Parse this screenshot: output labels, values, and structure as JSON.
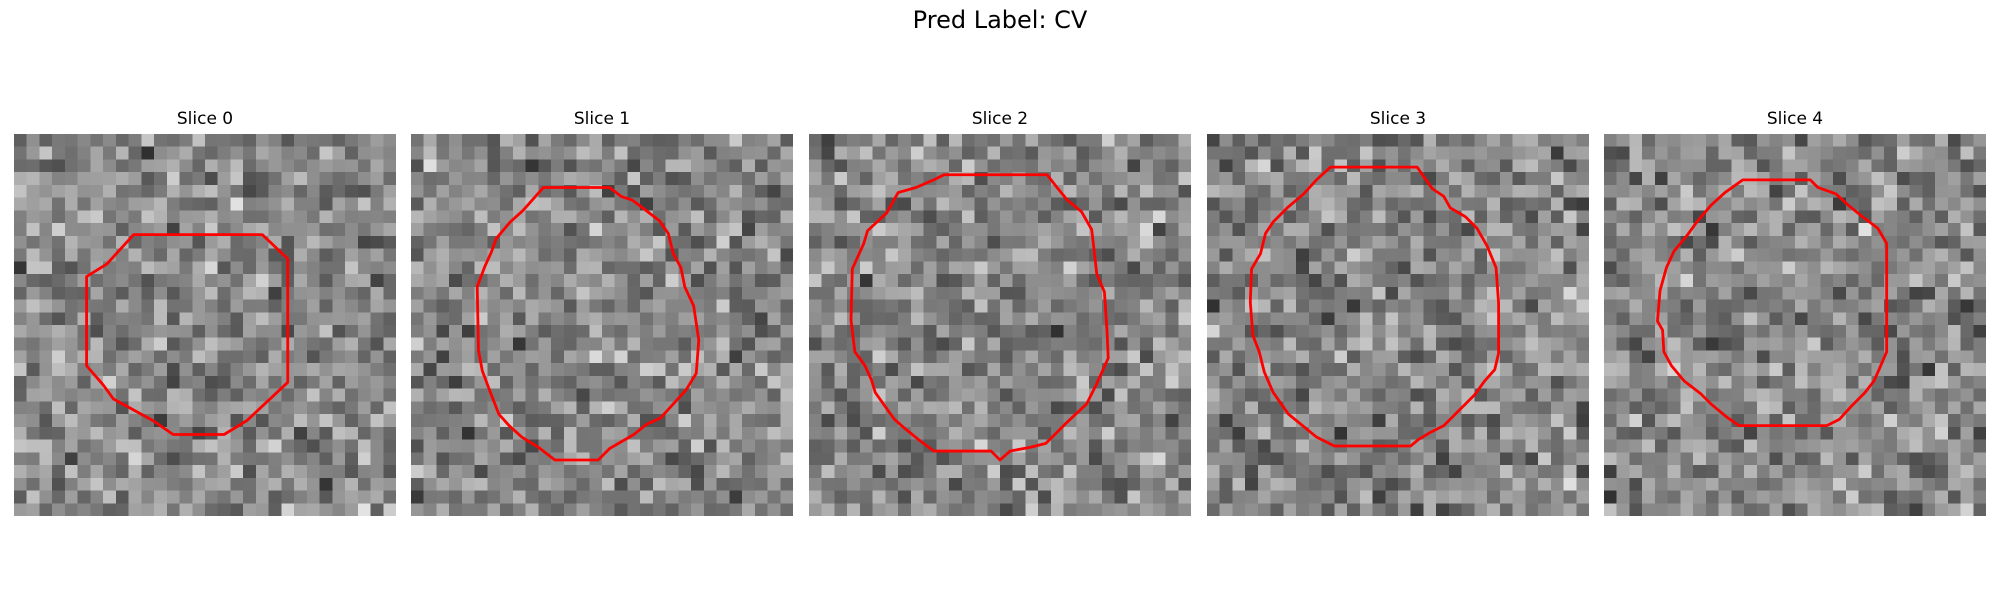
{
  "figure": {
    "title": "Pred Label: CV"
  },
  "panels": [
    {
      "title": "Slice 0",
      "seed": 11,
      "contour": [
        [
          9.4,
          7.9
        ],
        [
          19.5,
          7.9
        ],
        [
          21.5,
          9.8
        ],
        [
          21.5,
          19.5
        ],
        [
          18.3,
          22.5
        ],
        [
          16.5,
          23.6
        ],
        [
          12.5,
          23.6
        ],
        [
          10.9,
          22.5
        ],
        [
          7.8,
          20.8
        ],
        [
          7.0,
          19.7
        ],
        [
          5.7,
          18.2
        ],
        [
          5.7,
          11.2
        ],
        [
          7.3,
          10.2
        ]
      ],
      "contour_color": "#ff0000"
    },
    {
      "title": "Slice 1",
      "seed": 23,
      "contour": [
        [
          10.4,
          4.2
        ],
        [
          15.6,
          4.2
        ],
        [
          16.5,
          4.9
        ],
        [
          17.4,
          5.2
        ],
        [
          19.5,
          6.8
        ],
        [
          20.2,
          7.8
        ],
        [
          20.6,
          9.4
        ],
        [
          21.2,
          10.5
        ],
        [
          21.5,
          12.0
        ],
        [
          22.2,
          13.5
        ],
        [
          22.6,
          16.2
        ],
        [
          22.4,
          18.8
        ],
        [
          21.6,
          20.1
        ],
        [
          19.6,
          22.3
        ],
        [
          18.5,
          22.8
        ],
        [
          17.5,
          23.6
        ],
        [
          15.6,
          24.7
        ],
        [
          14.7,
          25.6
        ],
        [
          11.3,
          25.6
        ],
        [
          10.0,
          24.6
        ],
        [
          8.7,
          23.8
        ],
        [
          7.7,
          22.9
        ],
        [
          6.9,
          22.0
        ],
        [
          6.2,
          20.2
        ],
        [
          5.6,
          18.6
        ],
        [
          5.3,
          17.0
        ],
        [
          5.2,
          12.0
        ],
        [
          5.8,
          10.4
        ],
        [
          6.3,
          9.3
        ],
        [
          6.7,
          8.2
        ],
        [
          7.8,
          6.9
        ],
        [
          8.8,
          6.0
        ]
      ],
      "contour_color": "#ff0000"
    },
    {
      "title": "Slice 2",
      "seed": 37,
      "contour": [
        [
          10.6,
          3.2
        ],
        [
          18.7,
          3.2
        ],
        [
          19.4,
          4.1
        ],
        [
          20.3,
          5.2
        ],
        [
          21.4,
          6.1
        ],
        [
          22.2,
          7.5
        ],
        [
          22.4,
          9.2
        ],
        [
          22.6,
          11.0
        ],
        [
          23.2,
          12.4
        ],
        [
          23.4,
          15.4
        ],
        [
          23.5,
          17.6
        ],
        [
          22.6,
          19.6
        ],
        [
          21.8,
          21.2
        ],
        [
          20.2,
          22.7
        ],
        [
          19.5,
          23.4
        ],
        [
          18.6,
          24.3
        ],
        [
          17.4,
          24.6
        ],
        [
          15.8,
          24.9
        ],
        [
          15.0,
          25.6
        ],
        [
          14.3,
          24.9
        ],
        [
          9.8,
          24.9
        ],
        [
          8.6,
          24.0
        ],
        [
          7.5,
          23.1
        ],
        [
          6.7,
          22.4
        ],
        [
          5.2,
          20.3
        ],
        [
          4.9,
          19.3
        ],
        [
          4.4,
          18.2
        ],
        [
          3.6,
          17.1
        ],
        [
          3.3,
          14.6
        ],
        [
          3.4,
          10.6
        ],
        [
          4.3,
          8.6
        ],
        [
          4.6,
          7.6
        ],
        [
          6.1,
          6.2
        ],
        [
          7.0,
          4.6
        ],
        [
          8.4,
          4.2
        ],
        [
          9.8,
          3.6
        ]
      ],
      "contour_color": "#ff0000"
    },
    {
      "title": "Slice 3",
      "seed": 53,
      "contour": [
        [
          9.7,
          2.6
        ],
        [
          16.5,
          2.6
        ],
        [
          17.2,
          3.6
        ],
        [
          17.7,
          4.3
        ],
        [
          18.6,
          4.9
        ],
        [
          19.1,
          5.8
        ],
        [
          20.3,
          6.5
        ],
        [
          21.2,
          7.4
        ],
        [
          22.0,
          8.8
        ],
        [
          22.7,
          10.5
        ],
        [
          22.9,
          13.3
        ],
        [
          22.9,
          17.2
        ],
        [
          22.6,
          18.5
        ],
        [
          21.8,
          19.4
        ],
        [
          21.0,
          20.5
        ],
        [
          20.2,
          21.3
        ],
        [
          19.5,
          22.0
        ],
        [
          18.6,
          22.9
        ],
        [
          17.6,
          23.4
        ],
        [
          16.6,
          24.0
        ],
        [
          16.0,
          24.5
        ],
        [
          10.0,
          24.5
        ],
        [
          8.6,
          23.8
        ],
        [
          7.5,
          22.9
        ],
        [
          6.4,
          22.0
        ],
        [
          5.2,
          20.3
        ],
        [
          4.5,
          18.7
        ],
        [
          4.1,
          17.1
        ],
        [
          3.6,
          15.8
        ],
        [
          3.4,
          13.2
        ],
        [
          3.5,
          10.6
        ],
        [
          4.2,
          9.4
        ],
        [
          4.6,
          7.8
        ],
        [
          5.2,
          6.9
        ],
        [
          6.3,
          5.8
        ],
        [
          7.6,
          4.7
        ],
        [
          8.6,
          3.6
        ]
      ],
      "contour_color": "#ff0000"
    },
    {
      "title": "Slice 4",
      "seed": 71,
      "contour": [
        [
          10.9,
          3.6
        ],
        [
          16.2,
          3.6
        ],
        [
          16.8,
          4.2
        ],
        [
          18.2,
          4.7
        ],
        [
          19.2,
          5.6
        ],
        [
          20.3,
          6.5
        ],
        [
          21.5,
          7.4
        ],
        [
          22.2,
          8.6
        ],
        [
          22.2,
          17.1
        ],
        [
          21.6,
          18.5
        ],
        [
          21.2,
          19.4
        ],
        [
          20.5,
          20.3
        ],
        [
          19.5,
          21.3
        ],
        [
          18.5,
          22.4
        ],
        [
          17.5,
          22.9
        ],
        [
          10.6,
          22.9
        ],
        [
          9.6,
          22.2
        ],
        [
          8.4,
          21.2
        ],
        [
          7.6,
          20.4
        ],
        [
          6.3,
          19.4
        ],
        [
          5.3,
          18.2
        ],
        [
          4.7,
          17.1
        ],
        [
          4.6,
          15.4
        ],
        [
          4.2,
          14.7
        ],
        [
          4.4,
          12.3
        ],
        [
          4.9,
          10.5
        ],
        [
          5.5,
          9.2
        ],
        [
          6.5,
          8.0
        ],
        [
          7.3,
          6.9
        ],
        [
          8.4,
          5.6
        ],
        [
          9.5,
          4.6
        ]
      ],
      "contour_color": "#ff0000"
    }
  ],
  "grid_size": 30
}
